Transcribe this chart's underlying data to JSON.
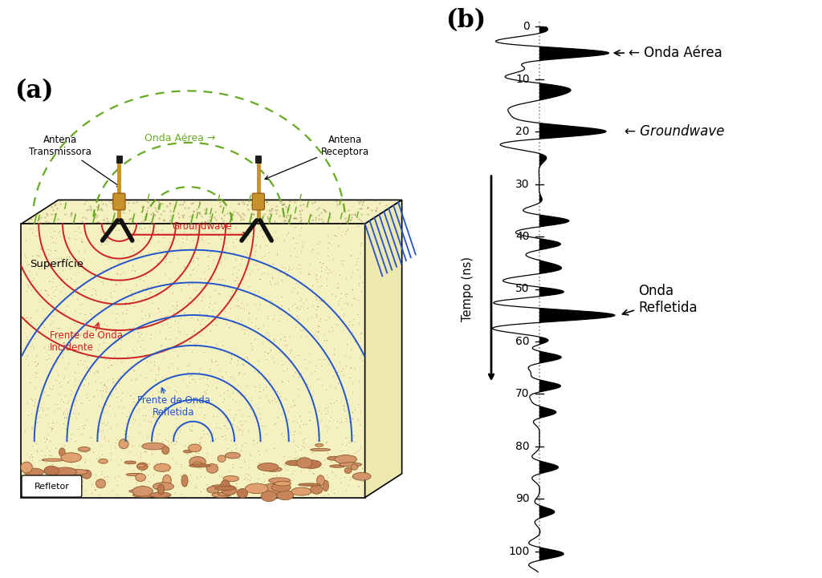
{
  "fig_width": 10.24,
  "fig_height": 7.21,
  "bg_color": "#ffffff",
  "panel_a_label": "(a)",
  "panel_b_label": "(b)",
  "soil_color": "#f5f0c0",
  "rock_color": "#d4956a",
  "surface_label": "Superfície",
  "refletor_label": "Refletor",
  "antena_tx_label": "Antena\nTransmissora",
  "antena_rx_label": "Antena\nReceptora",
  "onda_aerea_label_a": "Onda Aérea",
  "groundwave_label_a": "Groundwave",
  "groundwave_label_b": "← Groundwave",
  "frente_incidente_label": "Frente de Onda\nIncidente",
  "frente_refletida_label": "Frente de Onda\nRefletida",
  "onda_aerea_label_b": "← Onda Aérea",
  "onda_refletida_label": "Onda\nRefletida",
  "tempo_label": "Tempo (ns)",
  "red_color": "#cc2222",
  "blue_color": "#2255cc",
  "green_dashed_color": "#66aa22",
  "time_ticks": [
    0,
    10,
    20,
    30,
    40,
    50,
    60,
    70,
    80,
    90,
    100
  ],
  "waveform_scale": 0.55
}
